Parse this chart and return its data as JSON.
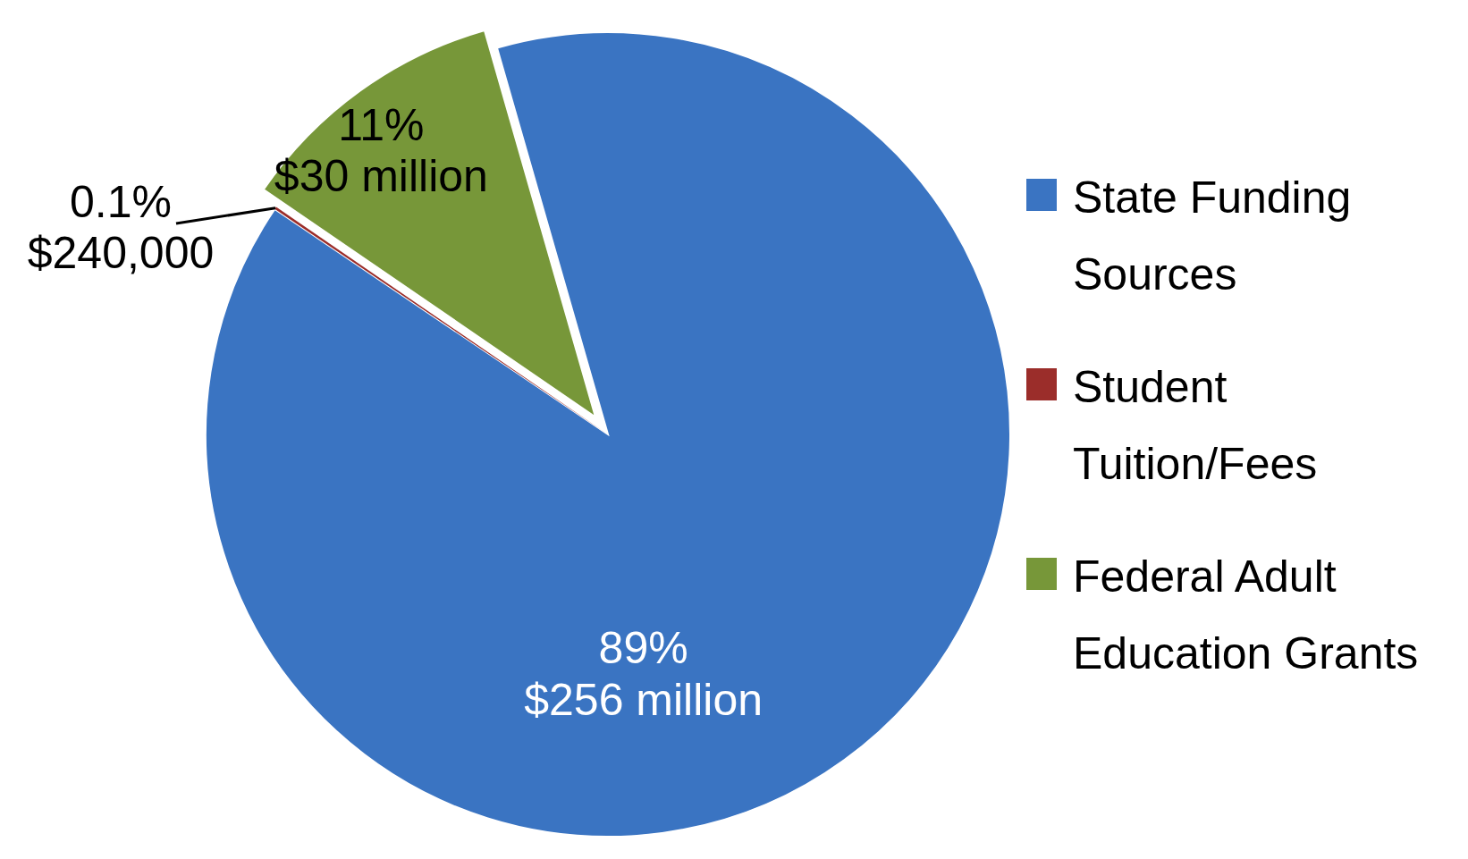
{
  "chart_data": {
    "type": "pie",
    "categories": [
      "State Funding Sources",
      "Student Tuition/Fees",
      "Federal Adult Education Grants"
    ],
    "values": [
      89,
      0.1,
      11
    ],
    "colors": [
      "#3a74c2",
      "#9b2d2a",
      "#779739"
    ],
    "value_labels": [
      "89%\n$256 million",
      "0.1%\n$240,000",
      "11%\n$30 million"
    ],
    "legend": "right"
  }
}
